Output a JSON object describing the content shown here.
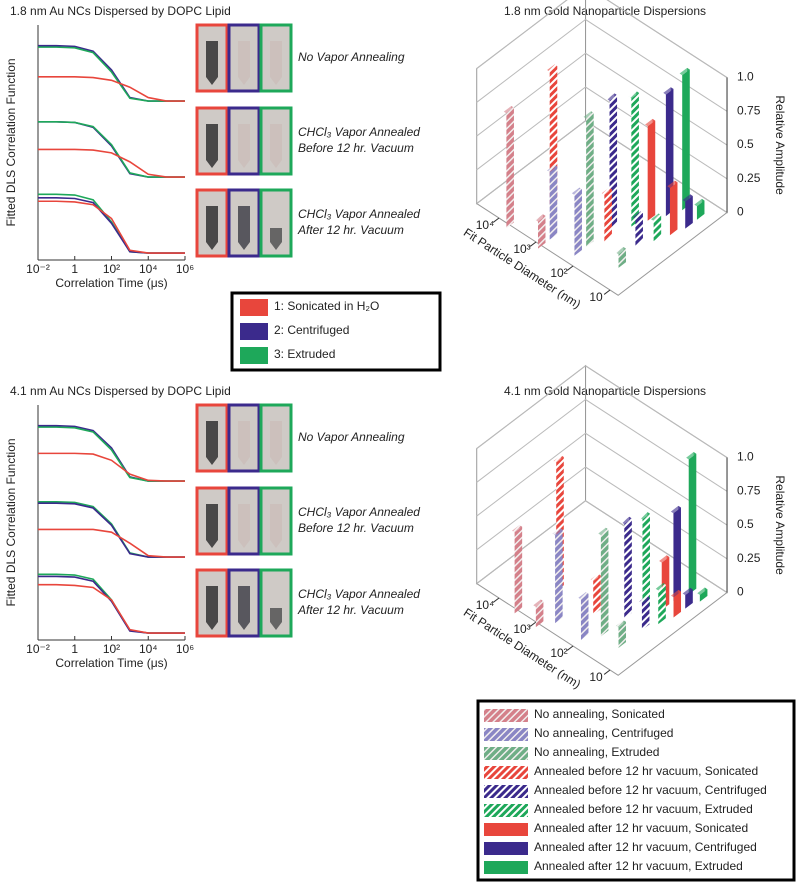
{
  "chart_data": [
    {
      "type": "line",
      "title": "1.8 nm Au NCs Dispersed by DOPC Lipid",
      "x_label": "Correlation Time (μs)",
      "y_label": "Fitted DLS Correlation Function",
      "log_x": true,
      "xlim": [
        0.01,
        1000000
      ],
      "xticks": [
        {
          "value": 0.01,
          "label": "10⁻²"
        },
        1,
        {
          "value": 100,
          "label": "10²"
        },
        {
          "value": 10000,
          "label": "10⁴"
        },
        {
          "value": 1000000,
          "label": "10⁶"
        }
      ],
      "ylim": [
        0,
        3.4
      ],
      "x": [
        0.01,
        0.1,
        1,
        10,
        100,
        1000,
        10000,
        100000,
        1000000
      ],
      "series": [
        {
          "color": "#3b2a8c",
          "values": [
            3.1,
            3.1,
            3.09,
            3.02,
            2.75,
            2.35,
            2.3,
            2.3,
            2.3
          ]
        },
        {
          "color": "#1ea85a",
          "values": [
            3.08,
            3.08,
            3.07,
            3.0,
            2.72,
            2.34,
            2.3,
            2.3,
            2.3
          ]
        },
        {
          "color": "#e8463c",
          "values": [
            2.65,
            2.65,
            2.65,
            2.64,
            2.6,
            2.5,
            2.35,
            2.3,
            2.3
          ]
        },
        {
          "color": "#3b2a8c",
          "values": [
            2.0,
            2.0,
            1.99,
            1.92,
            1.65,
            1.25,
            1.2,
            1.2,
            1.2
          ]
        },
        {
          "color": "#1ea85a",
          "values": [
            2.0,
            2.0,
            1.99,
            1.93,
            1.67,
            1.26,
            1.2,
            1.2,
            1.2
          ]
        },
        {
          "color": "#e8463c",
          "values": [
            1.6,
            1.6,
            1.6,
            1.59,
            1.55,
            1.42,
            1.24,
            1.2,
            1.2
          ]
        },
        {
          "color": "#1ea85a",
          "values": [
            0.95,
            0.95,
            0.94,
            0.87,
            0.55,
            0.12,
            0.1,
            0.1,
            0.1
          ]
        },
        {
          "color": "#3b2a8c",
          "values": [
            0.9,
            0.9,
            0.89,
            0.83,
            0.53,
            0.12,
            0.1,
            0.1,
            0.1
          ]
        },
        {
          "color": "#e8463c",
          "values": [
            0.85,
            0.85,
            0.84,
            0.8,
            0.6,
            0.14,
            0.1,
            0.1,
            0.1
          ]
        }
      ],
      "annotations": [
        [
          "No Vapor Annealing"
        ],
        [
          "CHCl₃ Vapor Annealed",
          "Before 12 hr. Vacuum"
        ],
        [
          "CHCl₃ Vapor Annealed",
          "After 12 hr. Vacuum"
        ]
      ],
      "legend": [
        {
          "label": "1: Sonicated in H₂O",
          "color": "#e8463c"
        },
        {
          "label": "2: Centrifuged",
          "color": "#3b2a8c"
        },
        {
          "label": "3: Extruded",
          "color": "#1ea85a"
        }
      ]
    },
    {
      "type": "bar3d",
      "title": "1.8 nm Gold Nanoparticle Dispersions",
      "x_label": "Fit Particle Diameter (nm)",
      "y_label": "Relative Amplitude",
      "log_x": true,
      "xlim": [
        6,
        40000
      ],
      "xticks": [
        10,
        {
          "value": 100,
          "label": "10²"
        },
        {
          "value": 1000,
          "label": "10³"
        },
        {
          "value": 10000,
          "label": "10⁴"
        }
      ],
      "ylim": [
        0,
        1
      ],
      "yticks": [
        0,
        0.25,
        0.5,
        0.75,
        {
          "value": 1,
          "label": "1.0"
        }
      ],
      "series": [
        {
          "name": "No annealing, Sonicated",
          "color": "#d4808a",
          "pattern": "light",
          "x": [
            5000,
            700
          ],
          "values": [
            0.85,
            0.2
          ]
        },
        {
          "name": "No annealing, Centrifuged",
          "color": "#8a86c4",
          "pattern": "light",
          "x": [
            700,
            150
          ],
          "values": [
            0.5,
            0.45
          ]
        },
        {
          "name": "No annealing, Extruded",
          "color": "#6fae86",
          "pattern": "light",
          "x": [
            150,
            20
          ],
          "values": [
            0.95,
            0.1
          ]
        },
        {
          "name": "Annealed before 12 hr vacuum, Sonicated",
          "color": "#e8463c",
          "pattern": "dense",
          "x": [
            3000,
            100
          ],
          "values": [
            1.0,
            0.35
          ]
        },
        {
          "name": "Annealed before 12 hr vacuum, Centrifuged",
          "color": "#3b2a8c",
          "pattern": "dense",
          "x": [
            150,
            30
          ],
          "values": [
            0.95,
            0.2
          ]
        },
        {
          "name": "Annealed before 12 hr vacuum, Extruded",
          "color": "#1ea85a",
          "pattern": "dense",
          "x": [
            80,
            20
          ],
          "values": [
            0.95,
            0.15
          ]
        },
        {
          "name": "Annealed after 12 hr vacuum, Sonicated",
          "color": "#e8463c",
          "pattern": "solid",
          "x": [
            60,
            15
          ],
          "values": [
            0.7,
            0.35
          ]
        },
        {
          "name": "Annealed after 12 hr vacuum, Centrifuged",
          "color": "#3b2a8c",
          "pattern": "solid",
          "x": [
            40,
            12
          ],
          "values": [
            0.9,
            0.2
          ]
        },
        {
          "name": "Annealed after 12 hr vacuum, Extruded",
          "color": "#1ea85a",
          "pattern": "solid",
          "x": [
            30,
            12
          ],
          "values": [
            1.0,
            0.1
          ]
        }
      ]
    },
    {
      "type": "line",
      "title": "4.1 nm Au NCs Dispersed by DOPC Lipid",
      "x_label": "Correlation Time (μs)",
      "y_label": "Fitted DLS Correlation Function",
      "log_x": true,
      "xlim": [
        0.01,
        1000000
      ],
      "xticks": [
        {
          "value": 0.01,
          "label": "10⁻²"
        },
        1,
        {
          "value": 100,
          "label": "10²"
        },
        {
          "value": 10000,
          "label": "10⁴"
        },
        {
          "value": 1000000,
          "label": "10⁶"
        }
      ],
      "ylim": [
        0,
        3.4
      ],
      "x": [
        0.01,
        0.1,
        1,
        10,
        100,
        1000,
        10000,
        100000,
        1000000
      ],
      "series": [
        {
          "color": "#3b2a8c",
          "values": [
            3.1,
            3.1,
            3.09,
            3.03,
            2.78,
            2.36,
            2.3,
            2.3,
            2.3
          ]
        },
        {
          "color": "#1ea85a",
          "values": [
            3.08,
            3.08,
            3.07,
            3.01,
            2.75,
            2.35,
            2.3,
            2.3,
            2.3
          ]
        },
        {
          "color": "#e8463c",
          "values": [
            2.7,
            2.7,
            2.7,
            2.69,
            2.6,
            2.4,
            2.31,
            2.3,
            2.3
          ]
        },
        {
          "color": "#1ea85a",
          "values": [
            2.0,
            2.0,
            1.99,
            1.93,
            1.68,
            1.26,
            1.2,
            1.2,
            1.2
          ]
        },
        {
          "color": "#3b2a8c",
          "values": [
            1.98,
            1.98,
            1.97,
            1.91,
            1.66,
            1.25,
            1.2,
            1.2,
            1.2
          ]
        },
        {
          "color": "#e8463c",
          "values": [
            1.6,
            1.6,
            1.6,
            1.6,
            1.56,
            1.4,
            1.22,
            1.2,
            1.2
          ]
        },
        {
          "color": "#1ea85a",
          "values": [
            0.95,
            0.95,
            0.94,
            0.88,
            0.58,
            0.14,
            0.1,
            0.1,
            0.1
          ]
        },
        {
          "color": "#3b2a8c",
          "values": [
            0.92,
            0.92,
            0.91,
            0.85,
            0.56,
            0.13,
            0.1,
            0.1,
            0.1
          ]
        },
        {
          "color": "#e8463c",
          "values": [
            0.8,
            0.8,
            0.79,
            0.76,
            0.58,
            0.15,
            0.1,
            0.1,
            0.1
          ]
        }
      ],
      "annotations": [
        [
          "No Vapor Annealing"
        ],
        [
          "CHCl₃ Vapor Annealed",
          "Before 12 hr. Vacuum"
        ],
        [
          "CHCl₃ Vapor Annealed",
          "After 12 hr. Vacuum"
        ]
      ]
    },
    {
      "type": "bar3d",
      "title": "4.1 nm Gold Nanoparticle Dispersions",
      "x_label": "Fit Particle Diameter (nm)",
      "y_label": "Relative Amplitude",
      "log_x": true,
      "xlim": [
        6,
        40000
      ],
      "xticks": [
        10,
        {
          "value": 100,
          "label": "10²"
        },
        {
          "value": 1000,
          "label": "10³"
        },
        {
          "value": 10000,
          "label": "10⁴"
        }
      ],
      "ylim": [
        0,
        1
      ],
      "yticks": [
        0,
        0.25,
        0.5,
        0.75,
        {
          "value": 1,
          "label": "1.0"
        }
      ],
      "series": [
        {
          "color": "#d4808a",
          "pattern": "light",
          "x": [
            3000,
            800
          ],
          "values": [
            0.6,
            0.15
          ]
        },
        {
          "color": "#8a86c4",
          "pattern": "light",
          "x": [
            500,
            100
          ],
          "values": [
            0.65,
            0.3
          ]
        },
        {
          "color": "#6fae86",
          "pattern": "light",
          "x": [
            60,
            20
          ],
          "values": [
            0.75,
            0.15
          ]
        },
        {
          "color": "#e8463c",
          "pattern": "dense",
          "x": [
            2000,
            200
          ],
          "values": [
            0.95,
            0.25
          ]
        },
        {
          "color": "#3b2a8c",
          "pattern": "dense",
          "x": [
            60,
            20
          ],
          "values": [
            0.7,
            0.2
          ]
        },
        {
          "color": "#1ea85a",
          "pattern": "dense",
          "x": [
            40,
            15
          ],
          "values": [
            0.7,
            0.25
          ]
        },
        {
          "color": "#e8463c",
          "pattern": "solid",
          "x": [
            25,
            12
          ],
          "values": [
            0.35,
            0.15
          ]
        },
        {
          "color": "#3b2a8c",
          "pattern": "solid",
          "x": [
            25,
            12
          ],
          "values": [
            0.65,
            0.1
          ]
        },
        {
          "color": "#1ea85a",
          "pattern": "solid",
          "x": [
            20,
            10
          ],
          "values": [
            1.0,
            0.05
          ]
        }
      ]
    }
  ]
}
